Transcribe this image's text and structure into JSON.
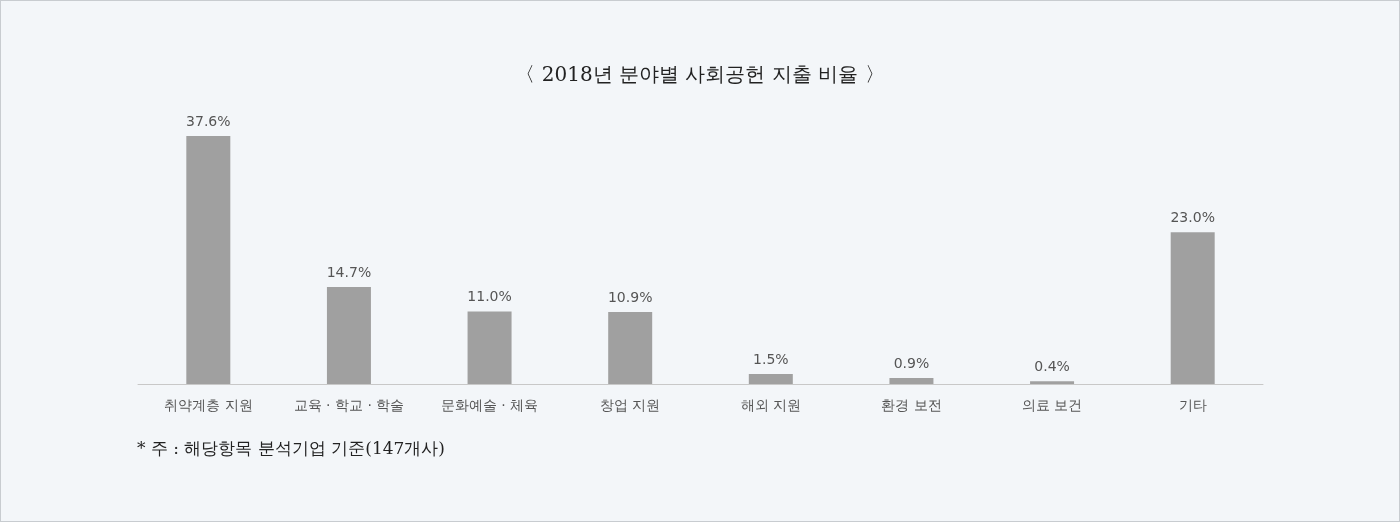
{
  "chart_data": {
    "type": "bar",
    "title": "〈 2018년 분야별 사회공헌 지출 비율 〉",
    "categories": [
      "취약계층 지원",
      "교육 · 학교 · 학술",
      "문화예술 · 체육",
      "창업 지원",
      "해외 지원",
      "환경 보전",
      "의료 보건",
      "기타"
    ],
    "values": [
      37.6,
      14.7,
      11.0,
      10.9,
      1.5,
      0.9,
      0.4,
      23.0
    ],
    "value_labels": [
      "37.6%",
      "14.7%",
      "11.0%",
      "10.9%",
      "1.5%",
      "0.9%",
      "0.4%",
      "23.0%"
    ],
    "color": "#a0a0a0",
    "grid": false,
    "annotations": [
      "* 주 : 해당항목 분석기업 기준(147개사)"
    ]
  }
}
